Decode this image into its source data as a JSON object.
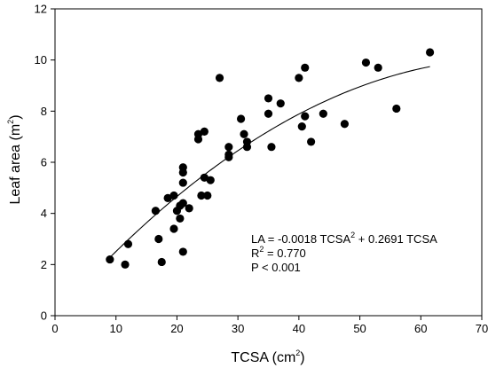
{
  "chart_data": {
    "type": "scatter",
    "xlabel": "TCSA (cm",
    "xlabel_sup": "2",
    "xlabel_suffix": ")",
    "ylabel": "Leaf area (m",
    "ylabel_sup": "2",
    "ylabel_suffix": ")",
    "xlim": [
      0,
      70
    ],
    "ylim": [
      0,
      12
    ],
    "xticks": [
      0,
      10,
      20,
      30,
      40,
      50,
      60,
      70
    ],
    "yticks": [
      0,
      2,
      4,
      6,
      8,
      10,
      12
    ],
    "grid": false,
    "series": [
      {
        "marker": "filled-circle",
        "color": "#000000",
        "points": [
          [
            9,
            2.2
          ],
          [
            11.5,
            2.0
          ],
          [
            12,
            2.8
          ],
          [
            16.5,
            4.1
          ],
          [
            17,
            3.0
          ],
          [
            17.5,
            2.1
          ],
          [
            18.5,
            4.6
          ],
          [
            19.5,
            3.4
          ],
          [
            19.5,
            4.7
          ],
          [
            20,
            4.1
          ],
          [
            20.5,
            4.3
          ],
          [
            20.5,
            3.8
          ],
          [
            21,
            4.4
          ],
          [
            21,
            5.8
          ],
          [
            21,
            5.6
          ],
          [
            21,
            5.2
          ],
          [
            21,
            2.5
          ],
          [
            22,
            4.2
          ],
          [
            23.5,
            7.1
          ],
          [
            23.5,
            6.9
          ],
          [
            24,
            4.7
          ],
          [
            24.5,
            7.2
          ],
          [
            24.5,
            5.4
          ],
          [
            25,
            4.7
          ],
          [
            25.5,
            5.3
          ],
          [
            27,
            9.3
          ],
          [
            28.5,
            6.6
          ],
          [
            28.5,
            6.3
          ],
          [
            28.5,
            6.2
          ],
          [
            30.5,
            7.7
          ],
          [
            31,
            7.1
          ],
          [
            31.5,
            6.8
          ],
          [
            31.5,
            6.6
          ],
          [
            35,
            8.5
          ],
          [
            35,
            7.9
          ],
          [
            35.5,
            6.6
          ],
          [
            37,
            8.3
          ],
          [
            40,
            9.3
          ],
          [
            40.5,
            7.4
          ],
          [
            41,
            9.7
          ],
          [
            41,
            7.8
          ],
          [
            42,
            6.8
          ],
          [
            44,
            7.9
          ],
          [
            47.5,
            7.5
          ],
          [
            51,
            9.9
          ],
          [
            53,
            9.7
          ],
          [
            56,
            8.1
          ],
          [
            61.5,
            10.3
          ]
        ]
      },
      {
        "type": "line",
        "color": "#000000",
        "fit": {
          "a": -0.0018,
          "b": 0.2691
        },
        "x_range": [
          9,
          61.5
        ]
      }
    ],
    "annotations": [
      {
        "text": "LA = -0.0018 TCSA",
        "sup": "2",
        "suffix": " + 0.2691 TCSA"
      },
      {
        "text": "R",
        "sup": "2",
        "suffix": " = 0.770"
      },
      {
        "text": "P < 0.001",
        "sup": "",
        "suffix": ""
      }
    ]
  }
}
